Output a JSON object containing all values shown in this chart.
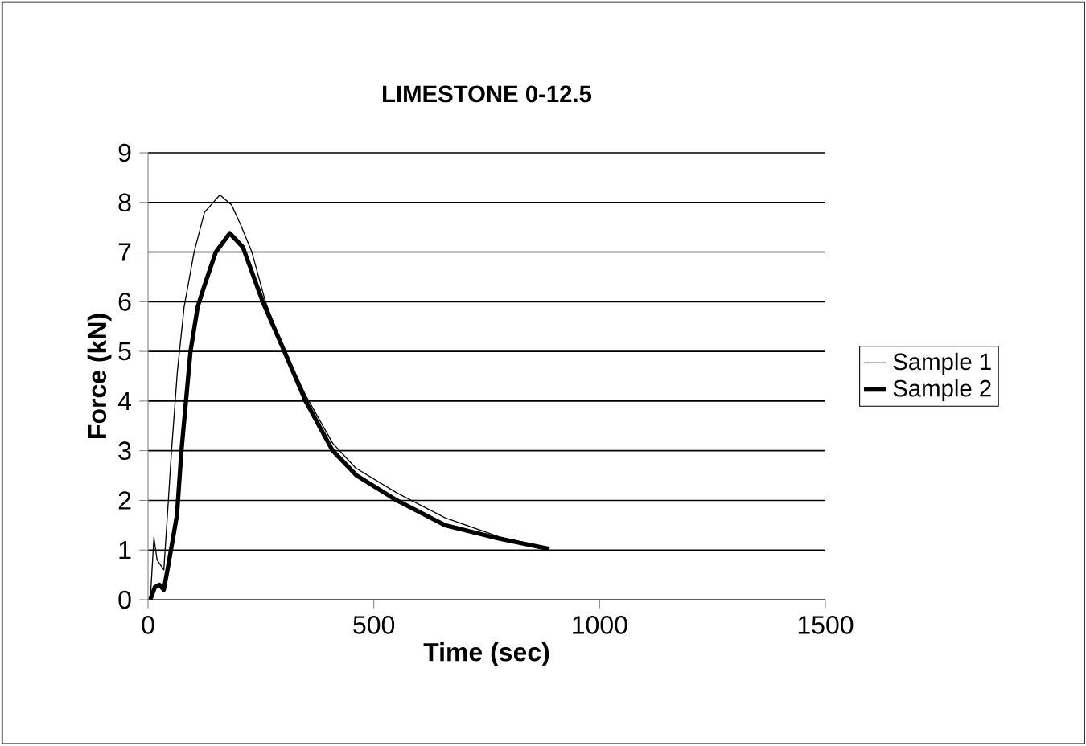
{
  "chart_data": {
    "type": "line",
    "title": "LIMESTONE 0-12.5",
    "xlabel": "Time (sec)",
    "ylabel": "Force (kN)",
    "xlim": [
      0,
      1500
    ],
    "xticks": [
      0,
      500,
      1000,
      1500
    ],
    "ylim": [
      0,
      9
    ],
    "yticks": [
      0,
      1,
      2,
      3,
      4,
      5,
      6,
      7,
      8,
      9
    ],
    "grid": "y",
    "legend": "right",
    "marker": "none",
    "line_style": "solid",
    "series": [
      {
        "name": "Sample 1",
        "color": "#000000",
        "x": [
          5,
          13,
          20,
          35,
          45,
          52,
          65,
          80,
          102,
          125,
          159,
          185,
          205,
          230,
          260,
          300,
          350,
          409,
          460,
          551,
          658,
          777,
          880
        ],
        "values": [
          0,
          1.25,
          0.8,
          0.6,
          2.0,
          3.0,
          4.6,
          5.9,
          7.0,
          7.8,
          8.15,
          7.95,
          7.55,
          7.0,
          6.0,
          5.05,
          4.1,
          3.15,
          2.65,
          2.15,
          1.65,
          1.27,
          1.05
        ]
      },
      {
        "name": "Sample 2",
        "color": "#000000",
        "x": [
          5,
          15,
          25,
          35,
          45,
          64,
          74,
          94,
          110,
          124,
          150,
          181,
          210,
          254,
          302,
          349,
          409,
          462,
          551,
          658,
          777,
          889
        ],
        "values": [
          0,
          0.25,
          0.3,
          0.2,
          0.7,
          1.7,
          3.0,
          5.0,
          5.9,
          6.3,
          7.0,
          7.38,
          7.1,
          6.0,
          5.0,
          4.0,
          3.0,
          2.5,
          2.0,
          1.5,
          1.23,
          1.02
        ]
      }
    ]
  }
}
